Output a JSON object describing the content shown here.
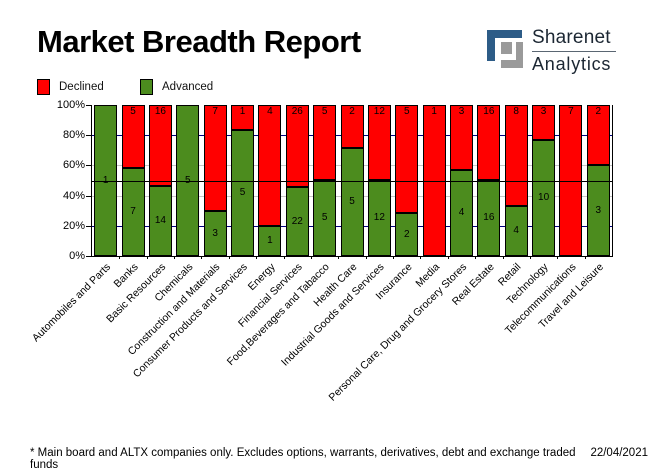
{
  "header": {
    "title": "Market Breadth Report",
    "logo": {
      "line1": "Sharenet",
      "line2": "Analytics",
      "blue": "#2d5c87",
      "gray": "#9a9a9a"
    }
  },
  "legend": [
    {
      "label": "Declined",
      "color": "#ff0000"
    },
    {
      "label": "Advanced",
      "color": "#4c8c1e"
    }
  ],
  "chart_data": {
    "type": "bar",
    "stacked": true,
    "percent_axis": true,
    "title": "Market Breadth Report",
    "categories": [
      "Automobiles and Parts",
      "Banks",
      "Basic Resources",
      "Chemicals",
      "Construction and Materials",
      "Consumer Products and Services",
      "Energy",
      "Financial Services",
      "Food,Beverages and Tabacco",
      "Health Care",
      "Industrial Goods and Services",
      "Insurance",
      "Media",
      "Personal Care, Drug and Grocery Stores",
      "Real Estate",
      "Retail",
      "Technology",
      "Telecommunications",
      "Travel and Leisure"
    ],
    "series": [
      {
        "name": "Declined",
        "color": "#ff0000",
        "values": [
          0,
          5,
          16,
          0,
          7,
          1,
          4,
          26,
          5,
          2,
          12,
          5,
          1,
          3,
          16,
          8,
          3,
          7,
          2
        ]
      },
      {
        "name": "Advanced",
        "color": "#4c8c1e",
        "values": [
          1,
          7,
          14,
          5,
          3,
          5,
          1,
          22,
          5,
          5,
          12,
          2,
          0,
          4,
          16,
          4,
          10,
          0,
          3
        ]
      }
    ],
    "ylim": [
      0,
      100
    ],
    "y_tick_labels": [
      "100%",
      "80%",
      "60%",
      "40%",
      "20%",
      "0%"
    ],
    "gridlines": {
      "navy_pct": [
        20,
        80
      ],
      "navy_color": "#000080",
      "silver_pct": [
        40,
        60
      ],
      "silver_color": "#c6c6c6",
      "reference_line_pct": 50,
      "reference_color": "#000000"
    },
    "legend_position": "top-left"
  },
  "footer": {
    "note": "* Main board and ALTX companies only. Excludes options, warrants, derivatives, debt and exchange traded funds",
    "date": "22/04/2021"
  }
}
